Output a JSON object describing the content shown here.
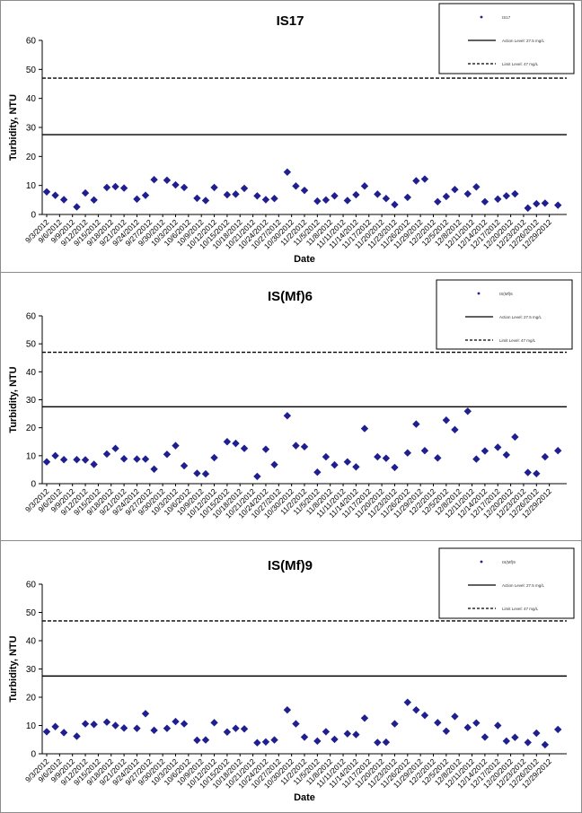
{
  "chart_data": [
    {
      "type": "scatter",
      "title": "IS17",
      "xlabel": "Date",
      "ylabel": "Turbidity, NTU",
      "ylim": [
        0,
        60
      ],
      "yticks": [
        0,
        10,
        20,
        30,
        40,
        50,
        60
      ],
      "grid": false,
      "legend_position": "top-right",
      "x_tick_labels": [
        "9/3/2012",
        "9/6/2012",
        "9/9/2012",
        "9/12/2012",
        "9/15/2012",
        "9/18/2012",
        "9/21/2012",
        "9/24/2012",
        "9/27/2012",
        "9/30/2012",
        "10/3/2012",
        "10/6/2012",
        "10/9/2012",
        "10/12/2012",
        "10/15/2012",
        "10/18/2012",
        "10/21/2012",
        "10/24/2012",
        "10/27/2012",
        "10/30/2012",
        "11/2/2012",
        "11/5/2012",
        "11/8/2012",
        "11/11/2012",
        "11/14/2012",
        "11/17/2012",
        "11/20/2012",
        "11/23/2012",
        "11/26/2012",
        "11/29/2012",
        "12/2/2012",
        "12/5/2012",
        "12/8/2012",
        "12/11/2012",
        "12/14/2012",
        "12/17/2012",
        "12/20/2012",
        "12/23/2012",
        "12/26/2012",
        "12/29/2012"
      ],
      "series": [
        {
          "name": "IS17",
          "color": "#1f1f8f",
          "marker": "diamond",
          "points": [
            [
              "9/3/2012",
              7.8
            ],
            [
              "9/5/2012",
              6.6
            ],
            [
              "9/7/2012",
              5.1
            ],
            [
              "9/10/2012",
              2.6
            ],
            [
              "9/12/2012",
              7.4
            ],
            [
              "9/14/2012",
              5
            ],
            [
              "9/17/2012",
              9.3
            ],
            [
              "9/19/2012",
              9.6
            ],
            [
              "9/21/2012",
              9.1
            ],
            [
              "9/24/2012",
              5.3
            ],
            [
              "9/26/2012",
              6.6
            ],
            [
              "9/28/2012",
              12
            ],
            [
              "10/1/2012",
              11.8
            ],
            [
              "10/3/2012",
              10.2
            ],
            [
              "10/5/2012",
              9.3
            ],
            [
              "10/8/2012",
              5.6
            ],
            [
              "10/10/2012",
              4.8
            ],
            [
              "10/12/2012",
              9.3
            ],
            [
              "10/15/2012",
              6.8
            ],
            [
              "10/17/2012",
              7
            ],
            [
              "10/19/2012",
              9
            ],
            [
              "10/22/2012",
              6.4
            ],
            [
              "10/24/2012",
              5.1
            ],
            [
              "10/26/2012",
              5.5
            ],
            [
              "10/29/2012",
              14.6
            ],
            [
              "10/31/2012",
              9.8
            ],
            [
              "11/2/2012",
              8.3
            ],
            [
              "11/5/2012",
              4.6
            ],
            [
              "11/7/2012",
              5
            ],
            [
              "11/9/2012",
              6.4
            ],
            [
              "11/12/2012",
              4.8
            ],
            [
              "11/14/2012",
              6.8
            ],
            [
              "11/16/2012",
              9.8
            ],
            [
              "11/19/2012",
              7
            ],
            [
              "11/21/2012",
              5.5
            ],
            [
              "11/23/2012",
              3.4
            ],
            [
              "11/26/2012",
              5.9
            ],
            [
              "11/28/2012",
              11.6
            ],
            [
              "11/30/2012",
              12.2
            ],
            [
              "12/3/2012",
              4.4
            ],
            [
              "12/5/2012",
              6.2
            ],
            [
              "12/7/2012",
              8.6
            ],
            [
              "12/10/2012",
              7.1
            ],
            [
              "12/12/2012",
              9.5
            ],
            [
              "12/14/2012",
              4.4
            ],
            [
              "12/17/2012",
              5.3
            ],
            [
              "12/19/2012",
              6.4
            ],
            [
              "12/21/2012",
              7.1
            ],
            [
              "12/24/2012",
              2.2
            ],
            [
              "12/26/2012",
              3.7
            ],
            [
              "12/28/2012",
              3.9
            ],
            [
              "12/31/2012",
              3.2
            ]
          ]
        },
        {
          "name": "Action Level: 27.5 mg/L",
          "color": "#000000",
          "style": "solid",
          "value": 27.5
        },
        {
          "name": "Limit Level: 47 mg/L",
          "color": "#000000",
          "style": "dashed",
          "value": 47
        }
      ]
    },
    {
      "type": "scatter",
      "title": "IS(Mf)6",
      "xlabel": "",
      "ylabel": "Turbidity, NTU",
      "ylim": [
        0,
        60
      ],
      "yticks": [
        0,
        10,
        20,
        30,
        40,
        50,
        60
      ],
      "grid": false,
      "legend_position": "top-right",
      "x_tick_labels": [
        "9/3/2012",
        "9/6/2012",
        "9/9/2012",
        "9/12/2012",
        "9/15/2012",
        "9/18/2012",
        "9/21/2012",
        "9/24/2012",
        "9/27/2012",
        "9/30/2012",
        "10/3/2012",
        "10/6/2012",
        "10/9/2012",
        "10/12/2012",
        "10/15/2012",
        "10/18/2012",
        "10/21/2012",
        "10/24/2012",
        "10/27/2012",
        "10/30/2012",
        "11/2/2012",
        "11/5/2012",
        "11/8/2012",
        "11/11/2012",
        "11/14/2012",
        "11/17/2012",
        "11/20/2012",
        "11/23/2012",
        "11/26/2012",
        "11/29/2012",
        "12/2/2012",
        "12/5/2012",
        "12/8/2012",
        "12/11/2012",
        "12/14/2012",
        "12/17/2012",
        "12/20/2012",
        "12/23/2012",
        "12/26/2012",
        "12/29/2012"
      ],
      "series": [
        {
          "name": "IS(Mf)6",
          "color": "#1f1f8f",
          "marker": "diamond",
          "points": [
            [
              "9/3/2012",
              7.8
            ],
            [
              "9/5/2012",
              10
            ],
            [
              "9/7/2012",
              8.6
            ],
            [
              "9/10/2012",
              8.6
            ],
            [
              "9/12/2012",
              8.5
            ],
            [
              "9/14/2012",
              6.9
            ],
            [
              "9/17/2012",
              10.6
            ],
            [
              "9/19/2012",
              12.6
            ],
            [
              "9/21/2012",
              8.9
            ],
            [
              "9/24/2012",
              8.8
            ],
            [
              "9/26/2012",
              8.8
            ],
            [
              "9/28/2012",
              5.2
            ],
            [
              "10/1/2012",
              10.5
            ],
            [
              "10/3/2012",
              13.6
            ],
            [
              "10/5/2012",
              6.4
            ],
            [
              "10/8/2012",
              3.7
            ],
            [
              "10/10/2012",
              3.5
            ],
            [
              "10/12/2012",
              9.3
            ],
            [
              "10/15/2012",
              15
            ],
            [
              "10/17/2012",
              14.4
            ],
            [
              "10/19/2012",
              12.6
            ],
            [
              "10/22/2012",
              2.6
            ],
            [
              "10/24/2012",
              12.3
            ],
            [
              "10/26/2012",
              6.8
            ],
            [
              "10/29/2012",
              24.3
            ],
            [
              "10/31/2012",
              13.6
            ],
            [
              "11/2/2012",
              13.2
            ],
            [
              "11/5/2012",
              4.1
            ],
            [
              "11/7/2012",
              9.6
            ],
            [
              "11/9/2012",
              6.7
            ],
            [
              "11/12/2012",
              7.8
            ],
            [
              "11/14/2012",
              6
            ],
            [
              "11/16/2012",
              19.7
            ],
            [
              "11/19/2012",
              9.6
            ],
            [
              "11/21/2012",
              9.1
            ],
            [
              "11/23/2012",
              5.8
            ],
            [
              "11/26/2012",
              11
            ],
            [
              "11/28/2012",
              21.3
            ],
            [
              "11/30/2012",
              11.8
            ],
            [
              "12/3/2012",
              9.2
            ],
            [
              "12/5/2012",
              22.7
            ],
            [
              "12/7/2012",
              19.3
            ],
            [
              "12/10/2012",
              25.9
            ],
            [
              "12/12/2012",
              8.8
            ],
            [
              "12/14/2012",
              11.7
            ],
            [
              "12/17/2012",
              13
            ],
            [
              "12/19/2012",
              10.3
            ],
            [
              "12/21/2012",
              16.7
            ],
            [
              "12/24/2012",
              4
            ],
            [
              "12/26/2012",
              3.6
            ],
            [
              "12/28/2012",
              9.6
            ],
            [
              "12/31/2012",
              11.8
            ]
          ]
        },
        {
          "name": "Action Level: 27.5 mg/L",
          "color": "#000000",
          "style": "solid",
          "value": 27.5
        },
        {
          "name": "Limit Level: 47 mg/L",
          "color": "#000000",
          "style": "dashed",
          "value": 47
        }
      ]
    },
    {
      "type": "scatter",
      "title": "IS(Mf)9",
      "xlabel": "Date",
      "ylabel": "Turbidity, NTU",
      "ylim": [
        0,
        60
      ],
      "yticks": [
        0,
        10,
        20,
        30,
        40,
        50,
        60
      ],
      "grid": false,
      "legend_position": "top-right",
      "x_tick_labels": [
        "9/3/2012",
        "9/6/2012",
        "9/9/2012",
        "9/12/2012",
        "9/15/2012",
        "9/18/2012",
        "9/21/2012",
        "9/24/2012",
        "9/27/2012",
        "9/30/2012",
        "10/3/2012",
        "10/6/2012",
        "10/9/2012",
        "10/12/2012",
        "10/15/2012",
        "10/18/2012",
        "10/21/2012",
        "10/24/2012",
        "10/27/2012",
        "10/30/2012",
        "11/2/2012",
        "11/5/2012",
        "11/8/2012",
        "11/11/2012",
        "11/14/2012",
        "11/17/2012",
        "11/20/2012",
        "11/23/2012",
        "11/26/2012",
        "11/29/2012",
        "12/2/2012",
        "12/5/2012",
        "12/8/2012",
        "12/11/2012",
        "12/14/2012",
        "12/17/2012",
        "12/20/2012",
        "12/23/2012",
        "12/26/2012",
        "12/29/2012"
      ],
      "series": [
        {
          "name": "IS(Mf)9",
          "color": "#1f1f8f",
          "marker": "diamond",
          "points": [
            [
              "9/3/2012",
              7.8
            ],
            [
              "9/5/2012",
              9.6
            ],
            [
              "9/7/2012",
              7.5
            ],
            [
              "9/10/2012",
              6.2
            ],
            [
              "9/12/2012",
              10.6
            ],
            [
              "9/14/2012",
              10.4
            ],
            [
              "9/17/2012",
              11.2
            ],
            [
              "9/19/2012",
              10
            ],
            [
              "9/21/2012",
              9.1
            ],
            [
              "9/24/2012",
              9
            ],
            [
              "9/26/2012",
              14.2
            ],
            [
              "9/28/2012",
              8.3
            ],
            [
              "10/1/2012",
              9
            ],
            [
              "10/3/2012",
              11.4
            ],
            [
              "10/5/2012",
              10.6
            ],
            [
              "10/8/2012",
              4.8
            ],
            [
              "10/10/2012",
              4.9
            ],
            [
              "10/12/2012",
              11
            ],
            [
              "10/15/2012",
              7.7
            ],
            [
              "10/17/2012",
              9
            ],
            [
              "10/19/2012",
              8.8
            ],
            [
              "10/22/2012",
              3.9
            ],
            [
              "10/24/2012",
              4.2
            ],
            [
              "10/26/2012",
              4.9
            ],
            [
              "10/29/2012",
              15.5
            ],
            [
              "10/31/2012",
              10.6
            ],
            [
              "11/2/2012",
              5.9
            ],
            [
              "11/5/2012",
              4.5
            ],
            [
              "11/7/2012",
              7.8
            ],
            [
              "11/9/2012",
              5.1
            ],
            [
              "11/12/2012",
              7.1
            ],
            [
              "11/14/2012",
              6.8
            ],
            [
              "11/16/2012",
              12.6
            ],
            [
              "11/19/2012",
              4
            ],
            [
              "11/21/2012",
              4.1
            ],
            [
              "11/23/2012",
              10.6
            ],
            [
              "11/26/2012",
              18.2
            ],
            [
              "11/28/2012",
              15.5
            ],
            [
              "11/30/2012",
              13.6
            ],
            [
              "12/3/2012",
              11
            ],
            [
              "12/5/2012",
              8
            ],
            [
              "12/7/2012",
              13.2
            ],
            [
              "12/10/2012",
              9.3
            ],
            [
              "12/12/2012",
              10.9
            ],
            [
              "12/14/2012",
              5.9
            ],
            [
              "12/17/2012",
              10
            ],
            [
              "12/19/2012",
              4.5
            ],
            [
              "12/21/2012",
              5.8
            ],
            [
              "12/24/2012",
              4
            ],
            [
              "12/26/2012",
              7.3
            ],
            [
              "12/28/2012",
              3.2
            ],
            [
              "12/31/2012",
              8.6
            ]
          ]
        },
        {
          "name": "Action Level: 27.5 mg/L",
          "color": "#000000",
          "style": "solid",
          "value": 27.5
        },
        {
          "name": "Limit Level: 47 mg/L",
          "color": "#000000",
          "style": "dashed",
          "value": 47
        }
      ]
    }
  ]
}
